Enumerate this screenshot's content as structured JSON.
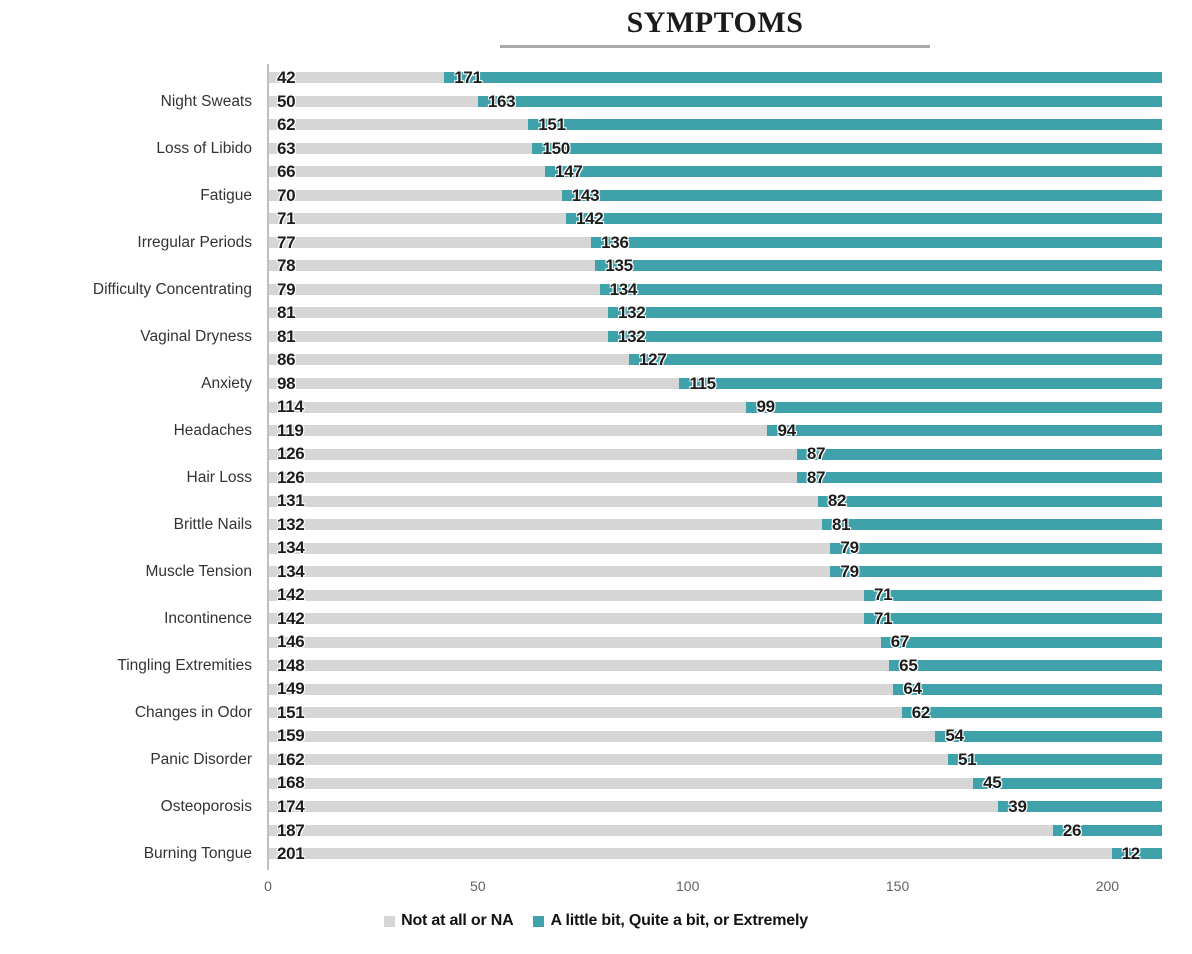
{
  "chart_data": {
    "type": "bar",
    "orientation": "horizontal",
    "stacked": true,
    "title": "SYMPTOMS",
    "xlabel": "",
    "ylabel": "",
    "xlim": [
      0,
      213
    ],
    "xticks": [
      0,
      50,
      100,
      150,
      200
    ],
    "grid": false,
    "legend_position": "bottom",
    "bar_total": 213,
    "colors": {
      "not_at_all": "#d6d6d6",
      "little_bit": "#3fa2ab",
      "axis_line": "#bfbfbf",
      "title_underline": "#a8a8a8",
      "tick_text": "#636363"
    },
    "legend": [
      {
        "name": "Not at all or NA",
        "color": "#d6d6d6"
      },
      {
        "name": "A little bit, Quite a bit, or Extremely",
        "color": "#3fa2ab"
      }
    ],
    "categories": [
      "Night Sweats",
      "Loss of Libido",
      "Fatigue",
      "Irregular Periods",
      "Difficulty Concentrating",
      "Vaginal Dryness",
      "Anxiety",
      "Headaches",
      "Hair Loss",
      "Brittle Nails",
      "Muscle Tension",
      "Incontinence",
      "Tingling Extremities",
      "Changes in Odor",
      "Panic Disorder",
      "Osteoporosis",
      "Burning Tongue"
    ],
    "rows": [
      {
        "label": "",
        "not_at_all": 42,
        "little_bit": 171
      },
      {
        "label": "Night Sweats",
        "not_at_all": 50,
        "little_bit": 163
      },
      {
        "label": "",
        "not_at_all": 62,
        "little_bit": 151
      },
      {
        "label": "Loss of Libido",
        "not_at_all": 63,
        "little_bit": 150
      },
      {
        "label": "",
        "not_at_all": 66,
        "little_bit": 147
      },
      {
        "label": "Fatigue",
        "not_at_all": 70,
        "little_bit": 143
      },
      {
        "label": "",
        "not_at_all": 71,
        "little_bit": 142
      },
      {
        "label": "Irregular Periods",
        "not_at_all": 77,
        "little_bit": 136
      },
      {
        "label": "",
        "not_at_all": 78,
        "little_bit": 135
      },
      {
        "label": "Difficulty Concentrating",
        "not_at_all": 79,
        "little_bit": 134
      },
      {
        "label": "",
        "not_at_all": 81,
        "little_bit": 132
      },
      {
        "label": "Vaginal Dryness",
        "not_at_all": 81,
        "little_bit": 132
      },
      {
        "label": "",
        "not_at_all": 86,
        "little_bit": 127
      },
      {
        "label": "Anxiety",
        "not_at_all": 98,
        "little_bit": 115
      },
      {
        "label": "",
        "not_at_all": 114,
        "little_bit": 99
      },
      {
        "label": "Headaches",
        "not_at_all": 119,
        "little_bit": 94
      },
      {
        "label": "",
        "not_at_all": 126,
        "little_bit": 87
      },
      {
        "label": "Hair Loss",
        "not_at_all": 126,
        "little_bit": 87
      },
      {
        "label": "",
        "not_at_all": 131,
        "little_bit": 82
      },
      {
        "label": "Brittle Nails",
        "not_at_all": 132,
        "little_bit": 81
      },
      {
        "label": "",
        "not_at_all": 134,
        "little_bit": 79
      },
      {
        "label": "Muscle Tension",
        "not_at_all": 134,
        "little_bit": 79
      },
      {
        "label": "",
        "not_at_all": 142,
        "little_bit": 71
      },
      {
        "label": "Incontinence",
        "not_at_all": 142,
        "little_bit": 71
      },
      {
        "label": "",
        "not_at_all": 146,
        "little_bit": 67
      },
      {
        "label": "Tingling Extremities",
        "not_at_all": 148,
        "little_bit": 65
      },
      {
        "label": "",
        "not_at_all": 149,
        "little_bit": 64
      },
      {
        "label": "Changes in Odor",
        "not_at_all": 151,
        "little_bit": 62
      },
      {
        "label": "",
        "not_at_all": 159,
        "little_bit": 54
      },
      {
        "label": "Panic Disorder",
        "not_at_all": 162,
        "little_bit": 51
      },
      {
        "label": "",
        "not_at_all": 168,
        "little_bit": 45
      },
      {
        "label": "Osteoporosis",
        "not_at_all": 174,
        "little_bit": 39
      },
      {
        "label": "",
        "not_at_all": 187,
        "little_bit": 26
      },
      {
        "label": "Burning Tongue",
        "not_at_all": 201,
        "little_bit": 12
      }
    ]
  }
}
